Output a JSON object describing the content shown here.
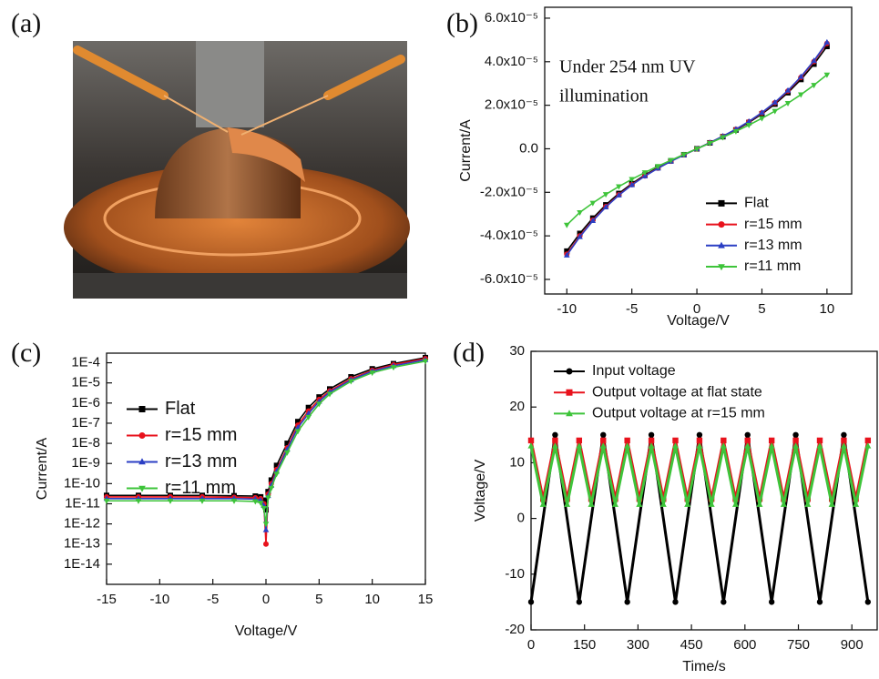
{
  "photo": {
    "label": "(a)"
  },
  "chart_data": [
    {
      "type": "line",
      "panel_label": "(b)",
      "x_label": "Voltage/V",
      "y_label": "Current/A",
      "annotation": [
        "Under 254 nm UV",
        "illumination"
      ],
      "xlim": [
        -11.7,
        11.9
      ],
      "xticks": [
        -10,
        -5,
        0,
        5,
        10
      ],
      "ylim": [
        -6.67e-05,
        6.5e-05
      ],
      "yticks": [
        {
          "value": -6e-05,
          "label": "-6.0x10⁻⁵"
        },
        {
          "value": -4e-05,
          "label": "-4.0x10⁻⁵"
        },
        {
          "value": -2e-05,
          "label": "-2.0x10⁻⁵"
        },
        {
          "value": 0,
          "label": "0.0"
        },
        {
          "value": 2e-05,
          "label": "2.0x10⁻⁵"
        },
        {
          "value": 4e-05,
          "label": "4.0x10⁻⁵"
        },
        {
          "value": 6e-05,
          "label": "6.0x10⁻⁵"
        }
      ],
      "log_y": false,
      "legend": "lower right",
      "legend_font": 16,
      "series": [
        {
          "name": "Flat",
          "color": "#000000",
          "marker": "square",
          "x": [
            -10,
            -9,
            -8,
            -7,
            -6,
            -5,
            -4,
            -3,
            -2,
            -1,
            0,
            1,
            2,
            3,
            4,
            5,
            6,
            7,
            8,
            9,
            10
          ],
          "values": [
            -4.7e-05,
            -3.888e-05,
            -3.184e-05,
            -2.576e-05,
            -2.052e-05,
            -1.6e-05,
            -1.208e-05,
            -8.64e-06,
            -5.56e-06,
            -2.72e-06,
            0,
            2.72e-06,
            5.56e-06,
            8.64e-06,
            1.208e-05,
            1.6e-05,
            2.052e-05,
            2.576e-05,
            3.184e-05,
            3.888e-05,
            4.7e-05
          ]
        },
        {
          "name": "r=15 mm",
          "color": "#e8121c",
          "marker": "circle",
          "x": [
            -10,
            -9,
            -8,
            -7,
            -6,
            -5,
            -4,
            -3,
            -2,
            -1,
            0,
            1,
            2,
            3,
            4,
            5,
            6,
            7,
            8,
            9,
            10
          ],
          "values": [
            -4.84e-05,
            -4.005e-05,
            -3.28e-05,
            -2.653e-05,
            -2.114e-05,
            -1.648e-05,
            -1.244e-05,
            -8.9e-06,
            -5.73e-06,
            -2.8e-06,
            0,
            2.8e-06,
            5.73e-06,
            8.9e-06,
            1.244e-05,
            1.648e-05,
            2.114e-05,
            2.653e-05,
            3.28e-05,
            4.005e-05,
            4.84e-05
          ]
        },
        {
          "name": "r=13 mm",
          "color": "#2b3fc4",
          "marker": "triangle-up",
          "x": [
            -10,
            -9,
            -8,
            -7,
            -6,
            -5,
            -4,
            -3,
            -2,
            -1,
            0,
            1,
            2,
            3,
            4,
            5,
            6,
            7,
            8,
            9,
            10
          ],
          "values": [
            -4.89e-05,
            -4.044e-05,
            -3.311e-05,
            -2.679e-05,
            -2.134e-05,
            -1.664e-05,
            -1.256e-05,
            -8.99e-06,
            -5.78e-06,
            -2.83e-06,
            0,
            2.83e-06,
            5.78e-06,
            8.99e-06,
            1.256e-05,
            1.664e-05,
            2.134e-05,
            2.679e-05,
            3.311e-05,
            4.044e-05,
            4.89e-05
          ]
        },
        {
          "name": "r=11 mm",
          "color": "#3ec43a",
          "marker": "triangle-down",
          "x": [
            -10,
            -9,
            -8,
            -7,
            -6,
            -5,
            -4,
            -3,
            -2,
            -1,
            0,
            1,
            2,
            3,
            4,
            5,
            6,
            7,
            8,
            9,
            10
          ],
          "values": [
            -3.5e-05,
            -2.923e-05,
            -2.49e-05,
            -2.094e-05,
            -1.733e-05,
            -1.4e-05,
            -1.091e-05,
            -8.02e-06,
            -5.26e-06,
            -2.61e-06,
            0,
            2.61e-06,
            5.26e-06,
            8.02e-06,
            1.091e-05,
            1.4e-05,
            1.733e-05,
            2.094e-05,
            2.49e-05,
            2.923e-05,
            3.4e-05
          ]
        }
      ]
    },
    {
      "type": "line",
      "panel_label": "(c)",
      "x_label": "Voltage/V",
      "y_label": "Current/A",
      "xlim": [
        -15,
        15
      ],
      "xticks": [
        -15,
        -10,
        -5,
        0,
        5,
        10,
        15
      ],
      "ylim": [
        1e-15,
        0.0003
      ],
      "yticks": [
        {
          "value": 1e-14,
          "label": "1E-14"
        },
        {
          "value": 1e-13,
          "label": "1E-13"
        },
        {
          "value": 1e-12,
          "label": "1E-12"
        },
        {
          "value": 1e-11,
          "label": "1E-11"
        },
        {
          "value": 1e-10,
          "label": "1E-10"
        },
        {
          "value": 1e-09,
          "label": "1E-9"
        },
        {
          "value": 1e-08,
          "label": "1E-8"
        },
        {
          "value": 1e-07,
          "label": "1E-7"
        },
        {
          "value": 1e-06,
          "label": "1E-6"
        },
        {
          "value": 1e-05,
          "label": "1E-5"
        },
        {
          "value": 0.0001,
          "label": "1E-4"
        }
      ],
      "log_y": true,
      "legend": "center left",
      "legend_font": 20,
      "series": [
        {
          "name": "Flat",
          "color": "#000000",
          "marker": "square",
          "x": [
            -15,
            -12,
            -9,
            -6,
            -3,
            -1,
            -0.5,
            -0.2,
            0,
            0.2,
            0.5,
            1,
            2,
            3,
            4,
            5,
            6,
            8,
            10,
            12,
            15
          ],
          "values": [
            2.6e-11,
            2.6e-11,
            2.6e-11,
            2.6e-11,
            2.5e-11,
            2.4e-11,
            2.2e-11,
            1.5e-11,
            5e-12,
            4e-11,
            1.5e-10,
            8e-10,
            1e-08,
            1.2e-07,
            6e-07,
            2e-06,
            5e-06,
            2e-05,
            5e-05,
            9e-05,
            0.00018
          ]
        },
        {
          "name": "r=15 mm",
          "color": "#e8121c",
          "marker": "circle",
          "x": [
            -15,
            -12,
            -9,
            -6,
            -3,
            -1,
            -0.5,
            -0.2,
            0,
            0.2,
            0.5,
            1,
            2,
            3,
            4,
            5,
            6,
            8,
            10,
            12,
            15
          ],
          "values": [
            2.2e-11,
            2.2e-11,
            2.2e-11,
            2.2e-11,
            2.1e-11,
            2e-11,
            1.8e-11,
            1e-11,
            1e-13,
            3e-11,
            1e-10,
            5e-10,
            6e-09,
            8e-08,
            4e-07,
            1.5e-06,
            4e-06,
            1.6e-05,
            4.2e-05,
            8e-05,
            0.00016
          ]
        },
        {
          "name": "r=13 mm",
          "color": "#2b3fc4",
          "marker": "triangle-up",
          "x": [
            -15,
            -12,
            -9,
            -6,
            -3,
            -1,
            -0.5,
            -0.2,
            0,
            0.2,
            0.5,
            1,
            2,
            3,
            4,
            5,
            6,
            8,
            10,
            12,
            15
          ],
          "values": [
            1.8e-11,
            1.8e-11,
            1.8e-11,
            1.8e-11,
            1.8e-11,
            1.7e-11,
            1.5e-11,
            8e-12,
            5e-13,
            2.5e-11,
            8e-11,
            4e-10,
            5e-09,
            6e-08,
            3e-07,
            1.2e-06,
            3.5e-06,
            1.4e-05,
            3.8e-05,
            7e-05,
            0.00014
          ]
        },
        {
          "name": "r=11 mm",
          "color": "#3ec43a",
          "marker": "triangle-down",
          "x": [
            -15,
            -12,
            -9,
            -6,
            -3,
            -1,
            -0.5,
            -0.2,
            0,
            0.2,
            0.5,
            1,
            2,
            3,
            4,
            5,
            6,
            8,
            10,
            12,
            15
          ],
          "values": [
            1.4e-11,
            1.4e-11,
            1.4e-11,
            1.4e-11,
            1.4e-11,
            1.3e-11,
            1.1e-11,
            6e-12,
            1e-12,
            2e-11,
            6e-11,
            3e-10,
            3.5e-09,
            4e-08,
            2e-07,
            9e-07,
            2.8e-06,
            1.2e-05,
            3.2e-05,
            6e-05,
            0.00012
          ]
        }
      ]
    },
    {
      "type": "line",
      "panel_label": "(d)",
      "x_label": "Time/s",
      "y_label": "Voltage/V",
      "xlim": [
        0,
        971
      ],
      "xticks": [
        0,
        150,
        300,
        450,
        600,
        750,
        900
      ],
      "ylim": [
        -20,
        30
      ],
      "yticks": [
        -20,
        -10,
        0,
        10,
        20,
        30
      ],
      "log_y": false,
      "legend": "upper left",
      "legend_font": 16,
      "series": [
        {
          "name": "Input voltage",
          "color": "#000000",
          "marker": "circle",
          "x": [
            0,
            67.5,
            135,
            202.5,
            270,
            337.5,
            405,
            472.5,
            540,
            607.5,
            675,
            742.5,
            810,
            877.5,
            945
          ],
          "values": [
            -15,
            15,
            -15,
            15,
            -15,
            15,
            -15,
            15,
            -15,
            15,
            -15,
            15,
            -15,
            15,
            -15
          ]
        },
        {
          "name": "Output voltage at flat state",
          "color": "#e8121c",
          "marker": "square",
          "x": [
            0,
            33.75,
            67.5,
            101.25,
            135,
            168.75,
            202.5,
            236.25,
            270,
            303.75,
            337.5,
            371.25,
            405,
            438.75,
            472.5,
            506.25,
            540,
            573.75,
            607.5,
            641.25,
            675,
            708.75,
            742.5,
            776.25,
            810,
            843.75,
            877.5,
            911.25,
            945
          ],
          "values": [
            14,
            3.5,
            14,
            3.5,
            14,
            3.5,
            14,
            3.5,
            14,
            3.5,
            14,
            3.5,
            14,
            3.5,
            14,
            3.5,
            14,
            3.5,
            14,
            3.5,
            14,
            3.5,
            14,
            3.5,
            14,
            3.5,
            14,
            3.5,
            14
          ]
        },
        {
          "name": "Output voltage at r=15 mm",
          "color": "#3ec43a",
          "marker": "triangle-up",
          "x": [
            0,
            33.75,
            67.5,
            101.25,
            135,
            168.75,
            202.5,
            236.25,
            270,
            303.75,
            337.5,
            371.25,
            405,
            438.75,
            472.5,
            506.25,
            540,
            573.75,
            607.5,
            641.25,
            675,
            708.75,
            742.5,
            776.25,
            810,
            843.75,
            877.5,
            911.25,
            945
          ],
          "values": [
            13,
            2.5,
            13,
            2.5,
            13,
            2.5,
            13,
            2.5,
            13,
            2.5,
            13,
            2.5,
            13,
            2.5,
            13,
            2.5,
            13,
            2.5,
            13,
            2.5,
            13,
            2.5,
            13,
            2.5,
            13,
            2.5,
            13,
            2.5,
            13
          ]
        }
      ]
    }
  ]
}
